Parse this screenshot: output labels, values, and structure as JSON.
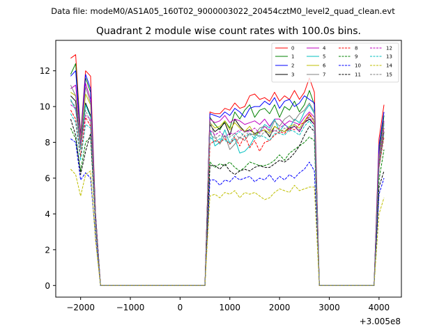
{
  "chart_data": {
    "type": "line",
    "suptitle": "Data file: modeM0/AS1A05_160T02_9000003022_20454cztM0_level2_quad_clean.evt",
    "title": "Quadrant 2 module wise count rates with 100.0s bins.",
    "xlabel": "",
    "ylabel": "",
    "x_offset_label": "+3.005e8",
    "xlim": [
      -2500,
      4450
    ],
    "ylim": [
      -0.65,
      13.7
    ],
    "xticks": [
      -2000,
      -1000,
      0,
      1000,
      2000,
      3000,
      4000
    ],
    "xtick_labels": [
      "−2000",
      "−1000",
      "0",
      "1000",
      "2000",
      "3000",
      "4000"
    ],
    "yticks": [
      0,
      2,
      4,
      6,
      8,
      10,
      12
    ],
    "ytick_labels": [
      "0",
      "2",
      "4",
      "6",
      "8",
      "10",
      "12"
    ],
    "grid": false,
    "legend_position": "top-right",
    "x": [
      -2200,
      -2100,
      -2000,
      -1900,
      -1800,
      -1700,
      -1600,
      -1500,
      -1400,
      -1300,
      -1200,
      -1100,
      -1000,
      -900,
      -800,
      -700,
      -600,
      -500,
      -400,
      -300,
      -200,
      -100,
      0,
      100,
      200,
      300,
      400,
      500,
      600,
      700,
      800,
      900,
      1000,
      1100,
      1200,
      1300,
      1400,
      1500,
      1600,
      1700,
      1800,
      1900,
      2000,
      2100,
      2200,
      2300,
      2400,
      2500,
      2600,
      2700,
      2800,
      2900,
      3000,
      3100,
      3200,
      3300,
      3400,
      3500,
      3600,
      3700,
      3800,
      3900,
      4000,
      4100
    ],
    "series": [
      {
        "name": "0",
        "color": "#ff0000",
        "dash": "solid",
        "values": [
          12.7,
          12.9,
          8.4,
          12.0,
          11.7,
          4.0,
          0,
          0,
          0,
          0,
          0,
          0,
          0,
          0,
          0,
          0,
          0,
          0,
          0,
          0,
          0,
          0,
          0,
          0,
          0,
          0,
          0,
          0,
          9.7,
          9.6,
          9.6,
          9.9,
          9.8,
          10.2,
          9.9,
          10.0,
          10.6,
          10.7,
          10.4,
          10.5,
          10.3,
          10.8,
          10.3,
          10.6,
          10.4,
          10.9,
          10.4,
          10.8,
          11.6,
          10.8,
          0,
          0,
          0,
          0,
          0,
          0,
          0,
          0,
          0,
          0,
          0,
          0,
          8.2,
          10.1
        ]
      },
      {
        "name": "1",
        "color": "#008000",
        "dash": "solid",
        "values": [
          11.8,
          12.4,
          8.4,
          11.6,
          10.8,
          4.0,
          0,
          0,
          0,
          0,
          0,
          0,
          0,
          0,
          0,
          0,
          0,
          0,
          0,
          0,
          0,
          0,
          0,
          0,
          0,
          0,
          0,
          0,
          9.4,
          9.0,
          8.7,
          9.2,
          8.8,
          9.7,
          9.3,
          9.8,
          10.1,
          9.4,
          9.8,
          9.9,
          9.6,
          10.1,
          9.4,
          10.0,
          9.8,
          10.3,
          9.7,
          10.1,
          10.9,
          10.1,
          0,
          0,
          0,
          0,
          0,
          0,
          0,
          0,
          0,
          0,
          0,
          0,
          7.5,
          9.5
        ]
      },
      {
        "name": "2",
        "color": "#0000ff",
        "dash": "solid",
        "values": [
          11.7,
          12.0,
          8.2,
          11.8,
          11.0,
          4.0,
          0,
          0,
          0,
          0,
          0,
          0,
          0,
          0,
          0,
          0,
          0,
          0,
          0,
          0,
          0,
          0,
          0,
          0,
          0,
          0,
          0,
          0,
          9.6,
          9.5,
          9.4,
          9.7,
          9.5,
          9.9,
          9.7,
          9.4,
          9.9,
          10.0,
          10.0,
          10.3,
          10.1,
          10.5,
          9.9,
          10.3,
          10.4,
          10.0,
          10.2,
          10.6,
          10.4,
          10.2,
          0,
          0,
          0,
          0,
          0,
          0,
          0,
          0,
          0,
          0,
          0,
          0,
          7.8,
          9.7
        ]
      },
      {
        "name": "3",
        "color": "#000000",
        "dash": "solid",
        "values": [
          10.6,
          10.3,
          7.8,
          10.2,
          9.5,
          3.8,
          0,
          0,
          0,
          0,
          0,
          0,
          0,
          0,
          0,
          0,
          0,
          0,
          0,
          0,
          0,
          0,
          0,
          0,
          0,
          0,
          0,
          0,
          9.0,
          8.6,
          8.8,
          9.1,
          8.4,
          9.3,
          8.9,
          8.6,
          8.7,
          8.5,
          8.6,
          8.7,
          8.3,
          8.9,
          8.7,
          8.6,
          8.8,
          8.9,
          8.6,
          9.1,
          9.3,
          9.0,
          0,
          0,
          0,
          0,
          0,
          0,
          0,
          0,
          0,
          0,
          0,
          0,
          6.6,
          8.6
        ]
      },
      {
        "name": "4",
        "color": "#bf00bf",
        "dash": "solid",
        "values": [
          11.0,
          11.2,
          8.3,
          11.3,
          10.4,
          3.9,
          0,
          0,
          0,
          0,
          0,
          0,
          0,
          0,
          0,
          0,
          0,
          0,
          0,
          0,
          0,
          0,
          0,
          0,
          0,
          0,
          0,
          0,
          9.3,
          9.1,
          9.2,
          9.5,
          9.1,
          9.3,
          9.2,
          9.0,
          9.1,
          9.2,
          9.0,
          9.3,
          8.9,
          9.3,
          9.3,
          9.0,
          9.2,
          9.1,
          9.0,
          9.4,
          9.7,
          9.4,
          0,
          0,
          0,
          0,
          0,
          0,
          0,
          0,
          0,
          0,
          0,
          0,
          7.3,
          9.2
        ]
      },
      {
        "name": "5",
        "color": "#00bfbf",
        "dash": "solid",
        "values": [
          10.4,
          9.8,
          7.6,
          10.1,
          9.4,
          3.7,
          0,
          0,
          0,
          0,
          0,
          0,
          0,
          0,
          0,
          0,
          0,
          0,
          0,
          0,
          0,
          0,
          0,
          0,
          0,
          0,
          0,
          0,
          8.7,
          7.8,
          8.0,
          8.7,
          7.9,
          8.2,
          7.4,
          7.5,
          7.8,
          8.3,
          8.6,
          9.0,
          8.8,
          9.3,
          8.6,
          9.0,
          8.8,
          9.3,
          9.1,
          9.7,
          10.1,
          9.6,
          0,
          0,
          0,
          0,
          0,
          0,
          0,
          0,
          0,
          0,
          0,
          0,
          7.0,
          9.0
        ]
      },
      {
        "name": "6",
        "color": "#bfbf00",
        "dash": "solid",
        "values": [
          10.8,
          10.6,
          8.1,
          10.7,
          10.1,
          3.8,
          0,
          0,
          0,
          0,
          0,
          0,
          0,
          0,
          0,
          0,
          0,
          0,
          0,
          0,
          0,
          0,
          0,
          0,
          0,
          0,
          0,
          0,
          9.1,
          8.8,
          8.9,
          9.2,
          8.7,
          9.1,
          8.8,
          8.6,
          8.9,
          8.4,
          8.6,
          8.7,
          8.5,
          8.9,
          8.7,
          8.6,
          8.9,
          9.0,
          8.8,
          9.2,
          9.6,
          9.1,
          0,
          0,
          0,
          0,
          0,
          0,
          0,
          0,
          0,
          0,
          0,
          0,
          6.9,
          8.8
        ]
      },
      {
        "name": "7",
        "color": "#808080",
        "dash": "solid",
        "values": [
          11.2,
          10.6,
          8.0,
          11.1,
          10.2,
          3.8,
          0,
          0,
          0,
          0,
          0,
          0,
          0,
          0,
          0,
          0,
          0,
          0,
          0,
          0,
          0,
          0,
          0,
          0,
          0,
          0,
          0,
          0,
          9.2,
          8.3,
          7.9,
          8.4,
          7.6,
          7.9,
          8.3,
          8.1,
          8.5,
          8.4,
          8.8,
          8.9,
          8.6,
          9.2,
          8.9,
          9.3,
          9.5,
          9.2,
          9.6,
          9.8,
          10.2,
          9.7,
          0,
          0,
          0,
          0,
          0,
          0,
          0,
          0,
          0,
          0,
          0,
          0,
          7.2,
          9.1
        ]
      },
      {
        "name": "8",
        "color": "#ff0000",
        "dash": "dashed",
        "values": [
          9.8,
          9.3,
          7.2,
          9.4,
          8.9,
          3.6,
          0,
          0,
          0,
          0,
          0,
          0,
          0,
          0,
          0,
          0,
          0,
          0,
          0,
          0,
          0,
          0,
          0,
          0,
          0,
          0,
          0,
          0,
          7.9,
          8.1,
          8.0,
          8.2,
          7.9,
          8.3,
          7.8,
          8.4,
          7.7,
          8.1,
          7.5,
          8.0,
          8.1,
          8.4,
          8.6,
          8.5,
          8.8,
          8.7,
          9.0,
          9.1,
          9.6,
          9.2,
          0,
          0,
          0,
          0,
          0,
          0,
          0,
          0,
          0,
          0,
          0,
          0,
          6.6,
          8.3
        ]
      },
      {
        "name": "9",
        "color": "#008000",
        "dash": "dashed",
        "values": [
          8.8,
          8.2,
          6.4,
          8.0,
          8.3,
          3.4,
          0,
          0,
          0,
          0,
          0,
          0,
          0,
          0,
          0,
          0,
          0,
          0,
          0,
          0,
          0,
          0,
          0,
          0,
          0,
          0,
          0,
          0,
          6.9,
          6.6,
          6.8,
          6.7,
          6.9,
          6.6,
          6.4,
          6.6,
          6.9,
          6.8,
          6.7,
          6.7,
          6.8,
          7.0,
          7.3,
          7.0,
          7.4,
          7.6,
          7.8,
          8.0,
          8.3,
          8.1,
          0,
          0,
          0,
          0,
          0,
          0,
          0,
          0,
          0,
          0,
          0,
          0,
          5.9,
          7.6
        ]
      },
      {
        "name": "10",
        "color": "#0000ff",
        "dash": "dashed",
        "values": [
          8.2,
          8.0,
          5.9,
          6.3,
          6.0,
          2.7,
          0,
          0,
          0,
          0,
          0,
          0,
          0,
          0,
          0,
          0,
          0,
          0,
          0,
          0,
          0,
          0,
          0,
          0,
          0,
          0,
          0,
          0,
          5.9,
          5.9,
          5.6,
          5.9,
          5.8,
          6.1,
          5.9,
          6.0,
          6.1,
          5.8,
          6.0,
          5.9,
          6.2,
          5.8,
          6.1,
          5.9,
          6.2,
          6.0,
          6.3,
          6.5,
          6.9,
          6.4,
          0,
          0,
          0,
          0,
          0,
          0,
          0,
          0,
          0,
          0,
          0,
          0,
          5.1,
          6.0
        ]
      },
      {
        "name": "11",
        "color": "#000000",
        "dash": "dashed",
        "values": [
          9.3,
          8.4,
          6.2,
          7.5,
          8.5,
          3.4,
          0,
          0,
          0,
          0,
          0,
          0,
          0,
          0,
          0,
          0,
          0,
          0,
          0,
          0,
          0,
          0,
          0,
          0,
          0,
          0,
          0,
          0,
          6.7,
          6.7,
          6.5,
          6.8,
          6.4,
          6.2,
          6.4,
          6.5,
          6.4,
          6.6,
          6.7,
          6.6,
          6.6,
          6.8,
          7.0,
          6.9,
          7.1,
          7.4,
          7.8,
          8.4,
          8.9,
          8.6,
          0,
          0,
          0,
          0,
          0,
          0,
          0,
          0,
          0,
          0,
          0,
          0,
          5.5,
          6.4
        ]
      },
      {
        "name": "12",
        "color": "#bf00bf",
        "dash": "dashed",
        "values": [
          10.1,
          9.9,
          7.9,
          9.5,
          9.3,
          3.7,
          0,
          0,
          0,
          0,
          0,
          0,
          0,
          0,
          0,
          0,
          0,
          0,
          0,
          0,
          0,
          0,
          0,
          0,
          0,
          0,
          0,
          0,
          8.7,
          8.4,
          8.6,
          8.3,
          8.5,
          8.5,
          8.7,
          8.6,
          8.6,
          8.8,
          8.5,
          8.9,
          8.7,
          8.6,
          8.8,
          9.0,
          8.7,
          8.9,
          8.6,
          9.1,
          9.4,
          9.0,
          0,
          0,
          0,
          0,
          0,
          0,
          0,
          0,
          0,
          0,
          0,
          0,
          6.9,
          8.8
        ]
      },
      {
        "name": "13",
        "color": "#00bfbf",
        "dash": "dashed",
        "values": [
          9.6,
          9.1,
          7.0,
          9.0,
          8.8,
          3.6,
          0,
          0,
          0,
          0,
          0,
          0,
          0,
          0,
          0,
          0,
          0,
          0,
          0,
          0,
          0,
          0,
          0,
          0,
          0,
          0,
          0,
          0,
          8.3,
          8.0,
          8.2,
          8.1,
          8.0,
          8.4,
          8.6,
          8.3,
          8.5,
          8.2,
          8.4,
          8.3,
          8.1,
          8.5,
          8.5,
          8.4,
          8.7,
          8.6,
          8.4,
          8.9,
          9.2,
          8.8,
          0,
          0,
          0,
          0,
          0,
          0,
          0,
          0,
          0,
          0,
          0,
          0,
          6.7,
          8.5
        ]
      },
      {
        "name": "14",
        "color": "#bfbf00",
        "dash": "dashed",
        "values": [
          6.5,
          6.2,
          5.0,
          6.2,
          6.4,
          2.5,
          0,
          0,
          0,
          0,
          0,
          0,
          0,
          0,
          0,
          0,
          0,
          0,
          0,
          0,
          0,
          0,
          0,
          0,
          0,
          0,
          0,
          0,
          5.0,
          5.1,
          4.9,
          5.2,
          5.1,
          5.3,
          4.9,
          5.2,
          5.1,
          5.2,
          5.0,
          4.8,
          4.9,
          5.2,
          5.4,
          5.3,
          5.2,
          5.6,
          5.3,
          5.4,
          5.5,
          5.5,
          0,
          0,
          0,
          0,
          0,
          0,
          0,
          0,
          0,
          0,
          0,
          0,
          4.0,
          4.9
        ]
      },
      {
        "name": "15",
        "color": "#808080",
        "dash": "dashed",
        "values": [
          10.3,
          10.0,
          7.7,
          9.8,
          9.1,
          3.7,
          0,
          0,
          0,
          0,
          0,
          0,
          0,
          0,
          0,
          0,
          0,
          0,
          0,
          0,
          0,
          0,
          0,
          0,
          0,
          0,
          0,
          0,
          8.5,
          8.2,
          8.4,
          8.3,
          8.3,
          8.5,
          8.2,
          8.6,
          8.4,
          8.5,
          8.3,
          8.6,
          8.4,
          8.7,
          8.5,
          8.8,
          8.6,
          9.0,
          8.7,
          9.1,
          9.5,
          9.2,
          0,
          0,
          0,
          0,
          0,
          0,
          0,
          0,
          0,
          0,
          0,
          0,
          6.8,
          8.6
        ]
      }
    ]
  }
}
